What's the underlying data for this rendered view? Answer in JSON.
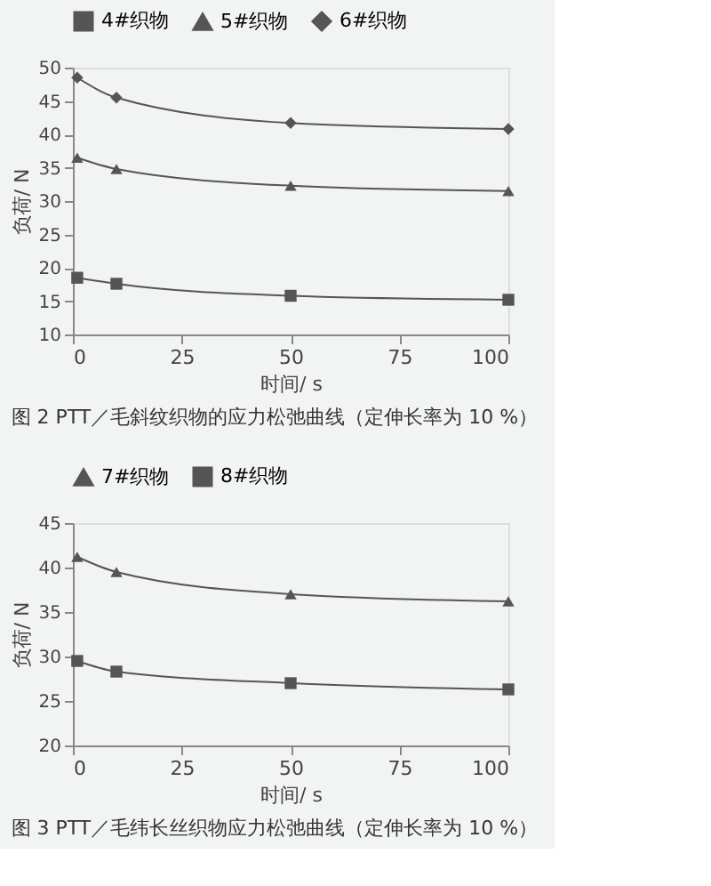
{
  "chart_data": [
    {
      "type": "line",
      "title": "图 2  PTT／毛斜纹织物的应力松弛曲线（定伸长率为 10 %）",
      "xlabel": "时间/ s",
      "ylabel": "负荷/ N",
      "x": [
        1,
        10,
        50,
        100
      ],
      "xlim": [
        0,
        100
      ],
      "xticks": [
        0,
        25,
        50,
        75,
        100
      ],
      "ylim": [
        10,
        50
      ],
      "yticks": [
        10,
        15,
        20,
        25,
        30,
        35,
        40,
        45,
        50
      ],
      "legend": "top",
      "grid": false,
      "line_style": "solid",
      "series": [
        {
          "name": "4#织物",
          "color": "#555555",
          "marker": "square",
          "values": [
            18.5,
            17.6,
            15.8,
            15.2
          ]
        },
        {
          "name": "5#织物",
          "color": "#555555",
          "marker": "triangle",
          "values": [
            36.5,
            34.8,
            32.3,
            31.5
          ]
        },
        {
          "name": "6#织物",
          "color": "#555555",
          "marker": "diamond",
          "values": [
            48.5,
            45.5,
            41.7,
            40.8
          ]
        }
      ]
    },
    {
      "type": "line",
      "title": "图 3  PTT／毛纬长丝织物应力松弛曲线（定伸长率为 10 %）",
      "xlabel": "时间/ s",
      "ylabel": "负荷/ N",
      "x": [
        1,
        10,
        50,
        100
      ],
      "xlim": [
        0,
        100
      ],
      "xticks": [
        0,
        25,
        50,
        75,
        100
      ],
      "ylim": [
        20,
        45
      ],
      "yticks": [
        20,
        25,
        30,
        35,
        40,
        45
      ],
      "legend": "top",
      "grid": false,
      "line_style": "solid",
      "series": [
        {
          "name": "7#织物",
          "color": "#555555",
          "marker": "triangle",
          "values": [
            41.2,
            39.5,
            37.0,
            36.2
          ]
        },
        {
          "name": "8#织物",
          "color": "#555555",
          "marker": "square",
          "values": [
            29.5,
            28.3,
            27.0,
            26.3
          ]
        }
      ]
    }
  ]
}
